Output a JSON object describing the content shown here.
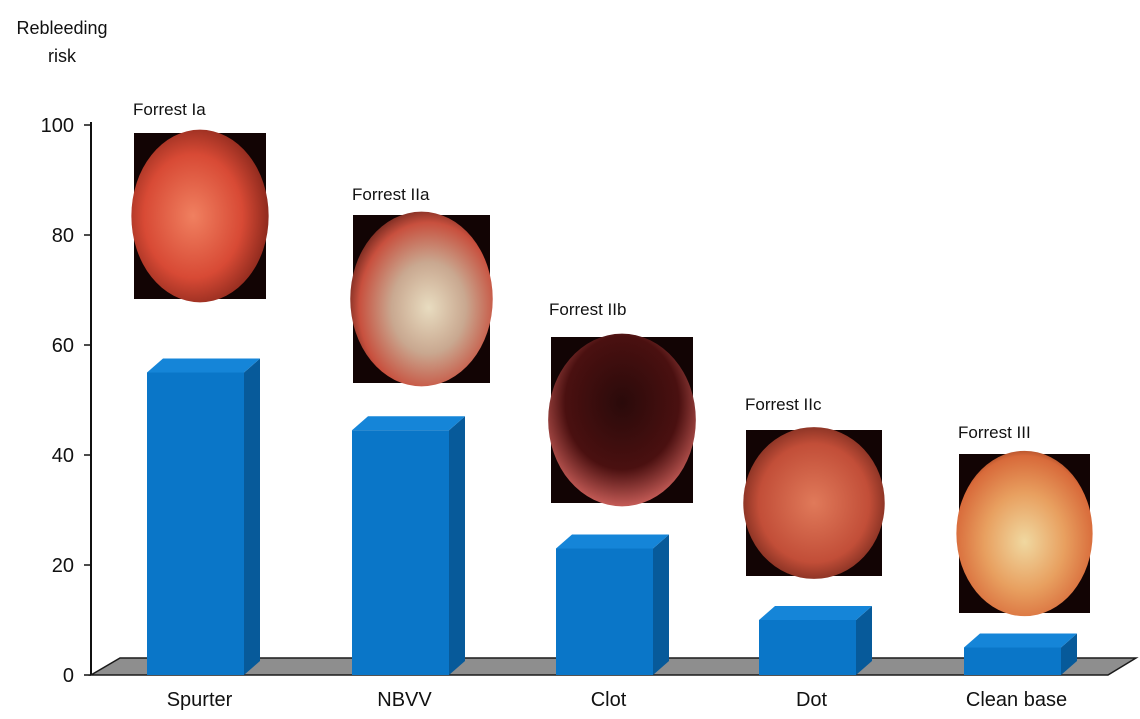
{
  "chart_data": {
    "type": "bar",
    "title": "",
    "xlabel": "",
    "ylabel_lines": [
      "Rebleeding",
      "risk"
    ],
    "ylim": [
      0,
      100
    ],
    "yticks": [
      "0",
      "20",
      "40",
      "60",
      "80",
      "100"
    ],
    "categories": [
      "Spurter",
      "NBVV",
      "Clot",
      "Dot",
      "Clean base"
    ],
    "values": [
      55,
      44.5,
      23,
      10,
      5
    ],
    "annotations": [
      "Forrest Ia",
      "Forrest IIa",
      "Forrest IIb",
      "Forrest IIc",
      "Forrest III"
    ],
    "legend": "none",
    "grid": false,
    "bars_3d": true
  },
  "colors": {
    "bar_front": "#0a76c8",
    "bar_side": "#075a9a",
    "bar_top": "#1585d8",
    "floor": "#8e8e8e"
  },
  "images": [
    {
      "tone": "bright-red",
      "depicts": "endoscopy spurting ulcer"
    },
    {
      "tone": "white-base",
      "depicts": "endoscopy visible vessel"
    },
    {
      "tone": "dark-clot",
      "depicts": "endoscopy adherent clot"
    },
    {
      "tone": "dark-spot",
      "depicts": "endoscopy flat pigmented spot"
    },
    {
      "tone": "orange-clean",
      "depicts": "endoscopy clean base ulcer"
    }
  ]
}
